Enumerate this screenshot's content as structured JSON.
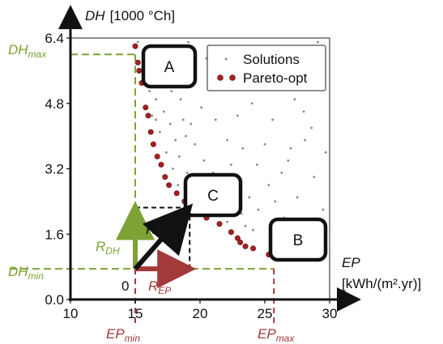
{
  "chart_data": {
    "type": "scatter",
    "x_axis": {
      "label_symbol": "EP",
      "label_unit": "[kWh/(m².yr)]",
      "range": [
        10,
        30
      ],
      "ticks": [
        "10",
        "15",
        "20",
        "25",
        "30"
      ]
    },
    "y_axis": {
      "label_symbol": "DH",
      "label_unit": "[1000 °Ch]",
      "range": [
        0,
        6.4
      ],
      "ticks": [
        "0.0",
        "1.6",
        "3.2",
        "4.8",
        "6.4"
      ]
    },
    "legend": {
      "placement": "top-right",
      "entries": [
        "Solutions",
        "Pareto-opt"
      ]
    },
    "series": [
      {
        "name": "Solutions",
        "color": "#888888",
        "points": [
          [
            15.2,
            6.3
          ],
          [
            15.6,
            6.1
          ],
          [
            16.4,
            6.2
          ],
          [
            15.9,
            5.9
          ],
          [
            16.8,
            5.6
          ],
          [
            17.4,
            6.1
          ],
          [
            18.2,
            5.9
          ],
          [
            16.2,
            5.5
          ],
          [
            17.1,
            5.3
          ],
          [
            16.6,
            4.9
          ],
          [
            17.8,
            5.1
          ],
          [
            16.3,
            4.5
          ],
          [
            17.2,
            4.6
          ],
          [
            18.5,
            4.9
          ],
          [
            19.4,
            5.3
          ],
          [
            17.7,
            4.3
          ],
          [
            18.7,
            4.4
          ],
          [
            16.9,
            4.1
          ],
          [
            18.1,
            3.9
          ],
          [
            19.3,
            4.3
          ],
          [
            20.1,
            4.7
          ],
          [
            17.4,
            3.6
          ],
          [
            18.4,
            3.5
          ],
          [
            19.6,
            3.8
          ],
          [
            21.2,
            4.4
          ],
          [
            17.9,
            3.2
          ],
          [
            19.0,
            3.1
          ],
          [
            20.3,
            3.4
          ],
          [
            22.1,
            3.9
          ],
          [
            18.3,
            2.8
          ],
          [
            19.8,
            2.8
          ],
          [
            21.0,
            3.1
          ],
          [
            22.4,
            3.3
          ],
          [
            23.3,
            3.7
          ],
          [
            19.6,
            2.5
          ],
          [
            20.7,
            2.6
          ],
          [
            21.9,
            2.7
          ],
          [
            23.1,
            2.9
          ],
          [
            24.4,
            3.3
          ],
          [
            21.3,
            2.3
          ],
          [
            22.6,
            2.4
          ],
          [
            23.8,
            2.5
          ],
          [
            25.3,
            2.8
          ],
          [
            26.8,
            3.4
          ],
          [
            28.1,
            3.9
          ],
          [
            23.2,
            2.1
          ],
          [
            24.5,
            2.2
          ],
          [
            22.1,
            1.9
          ],
          [
            23.5,
            1.8
          ],
          [
            24.1,
            1.7
          ],
          [
            20.8,
            5.6
          ],
          [
            22.5,
            5.2
          ],
          [
            24.0,
            4.8
          ],
          [
            25.6,
            4.4
          ],
          [
            27.3,
            4.9
          ],
          [
            28.6,
            4.2
          ],
          [
            29.4,
            5.4
          ],
          [
            26.1,
            5.8
          ],
          [
            23.6,
            6.0
          ],
          [
            21.6,
            6.2
          ],
          [
            27.7,
            6.1
          ],
          [
            29.1,
            6.3
          ],
          [
            25.0,
            3.8
          ],
          [
            26.3,
            3.1
          ],
          [
            27.5,
            2.5
          ],
          [
            28.8,
            3.0
          ],
          [
            29.5,
            2.2
          ],
          [
            26.5,
            2.0
          ],
          [
            19.1,
            6.3
          ],
          [
            20.5,
            5.9
          ],
          [
            18.9,
            4.0
          ],
          [
            17.6,
            5.8
          ],
          [
            16.1,
            5.1
          ],
          [
            16.6,
            4.4
          ],
          [
            24.8,
            5.4
          ],
          [
            27.0,
            3.7
          ],
          [
            28.0,
            4.6
          ],
          [
            25.8,
            2.4
          ],
          [
            29.7,
            3.6
          ],
          [
            22.9,
            4.5
          ]
        ]
      },
      {
        "name": "Pareto-opt",
        "color": "#a32020",
        "points": [
          [
            15.0,
            6.2
          ],
          [
            15.2,
            5.8
          ],
          [
            15.3,
            5.6
          ],
          [
            15.5,
            5.3
          ],
          [
            15.8,
            4.7
          ],
          [
            16.0,
            4.5
          ],
          [
            16.2,
            4.1
          ],
          [
            16.4,
            3.8
          ],
          [
            16.7,
            3.5
          ],
          [
            17.0,
            3.3
          ],
          [
            17.3,
            3.0
          ],
          [
            17.6,
            2.8
          ],
          [
            18.2,
            2.6
          ],
          [
            18.8,
            2.4
          ],
          [
            19.2,
            2.25
          ],
          [
            19.8,
            2.15
          ],
          [
            20.5,
            2.0
          ],
          [
            21.5,
            1.85
          ],
          [
            22.4,
            1.65
          ],
          [
            22.9,
            1.5
          ],
          [
            23.1,
            1.4
          ],
          [
            23.5,
            1.3
          ],
          [
            24.1,
            1.25
          ],
          [
            25.3,
            1.1
          ]
        ]
      }
    ],
    "annotations": {
      "dh_max_label": "DH",
      "dh_max_sub": "max",
      "dh_min_label": "DH",
      "dh_min_sub": "min",
      "ep_min_label": "EP",
      "ep_min_sub": "min",
      "ep_max_label": "EP",
      "ep_max_sub": "max",
      "r_dh_label": "R",
      "r_dh_sub": "DH",
      "r_ep_label": "R",
      "r_ep_sub": "EP",
      "r_label": "R",
      "origin_label": "0",
      "box_a": "A",
      "box_b": "B",
      "box_c": "C"
    },
    "reference_values": {
      "dh_max": 6.0,
      "dh_min": 0.75,
      "ep_min": 15,
      "ep_max": 25.7,
      "point_c": [
        19.2,
        2.25
      ]
    },
    "colors": {
      "green": "#7da334",
      "red": "#a33a3a",
      "axis": "#111111"
    }
  }
}
